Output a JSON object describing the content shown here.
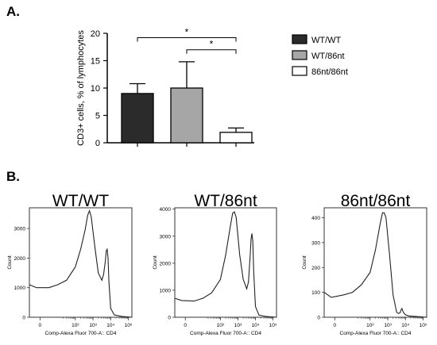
{
  "panel_a": {
    "label": "A."
  },
  "panel_b": {
    "label": "B."
  },
  "chart_data": [
    {
      "type": "bar",
      "categories": [
        "WT/WT",
        "WT/86nt",
        "86nt/86nt"
      ],
      "values": [
        9.0,
        10.0,
        1.9
      ],
      "errors": [
        1.8,
        4.8,
        0.8
      ],
      "fills": [
        "#2b2b2b",
        "#a6a6a6",
        "#ffffff"
      ],
      "ylabel": "CD3+ cells, % of lymphocytes",
      "ylim": [
        0,
        20
      ],
      "yticks": [
        "0",
        "5",
        "10",
        "15",
        "20"
      ],
      "legend": {
        "placement": "right",
        "entries": [
          "WT/WT",
          "WT/86nt",
          "86nt/86nt"
        ]
      },
      "significance": [
        {
          "from": "WT/WT",
          "to": "86nt/86nt",
          "label": "*",
          "y": 19.2
        },
        {
          "from": "WT/86nt",
          "to": "86nt/86nt",
          "label": "*",
          "y": 17.0
        }
      ]
    },
    {
      "type": "line",
      "title": "WT/WT",
      "xlabel": "Comp-Alexa Fluor 700-A:: CD4",
      "ylabel": "Count",
      "xscale": "log",
      "xlim": [
        -0.6,
        5.2
      ],
      "xticks": [
        "0",
        "10²",
        "10³",
        "10⁴",
        "10⁵"
      ],
      "ylim": [
        0,
        3700
      ],
      "yticks": [
        "0",
        "1000",
        "2000",
        "3000"
      ],
      "x": [
        -0.6,
        -0.2,
        0.5,
        1.0,
        1.5,
        2.0,
        2.3,
        2.55,
        2.7,
        2.8,
        2.9,
        3.1,
        3.3,
        3.5,
        3.6,
        3.7,
        3.75,
        3.8,
        3.85,
        3.9,
        4.0,
        4.2,
        4.6,
        5.2
      ],
      "y": [
        1100,
        1000,
        1000,
        1100,
        1250,
        1700,
        2300,
        2950,
        3450,
        3600,
        3400,
        2400,
        1500,
        1250,
        1450,
        1900,
        2250,
        2300,
        2000,
        1200,
        300,
        80,
        30,
        0
      ]
    },
    {
      "type": "line",
      "title": "WT/86nt",
      "xlabel": "Comp-Alexa Fluor 700-A:: CD4",
      "ylabel": "Count",
      "xscale": "log",
      "xlim": [
        -0.6,
        5.2
      ],
      "xticks": [
        "0",
        "10²",
        "10³",
        "10⁴",
        "10⁵"
      ],
      "ylim": [
        0,
        4050
      ],
      "yticks": [
        "0",
        "1000",
        "2000",
        "3000",
        "4000"
      ],
      "x": [
        -0.6,
        -0.2,
        0.5,
        1.0,
        1.5,
        2.0,
        2.3,
        2.55,
        2.7,
        2.8,
        2.9,
        3.1,
        3.3,
        3.5,
        3.6,
        3.7,
        3.75,
        3.8,
        3.85,
        3.9,
        4.0,
        4.2,
        4.6,
        5.2
      ],
      "y": [
        700,
        620,
        600,
        700,
        900,
        1400,
        2300,
        3300,
        3850,
        3900,
        3700,
        2300,
        1400,
        1050,
        1300,
        2300,
        2900,
        3100,
        2800,
        1700,
        400,
        80,
        30,
        0
      ]
    },
    {
      "type": "line",
      "title": "86nt/86nt",
      "xlabel": "Comp-Alexa Fluor 700-A:: CD4",
      "ylabel": "Count",
      "xscale": "log",
      "xlim": [
        -0.6,
        5.2
      ],
      "xticks": [
        "0",
        "10²",
        "10³",
        "10⁴",
        "10⁵"
      ],
      "ylim": [
        0,
        440
      ],
      "yticks": [
        "0",
        "100",
        "200",
        "300",
        "400"
      ],
      "x": [
        -0.6,
        -0.2,
        0.5,
        1.0,
        1.5,
        2.0,
        2.3,
        2.55,
        2.7,
        2.8,
        2.9,
        3.1,
        3.3,
        3.5,
        3.6,
        3.7,
        3.75,
        3.8,
        3.85,
        3.9,
        4.0,
        4.2,
        4.6,
        5.2
      ],
      "y": [
        100,
        80,
        90,
        100,
        130,
        180,
        270,
        370,
        420,
        420,
        400,
        250,
        90,
        20,
        15,
        18,
        30,
        35,
        25,
        18,
        10,
        5,
        3,
        0
      ]
    }
  ]
}
